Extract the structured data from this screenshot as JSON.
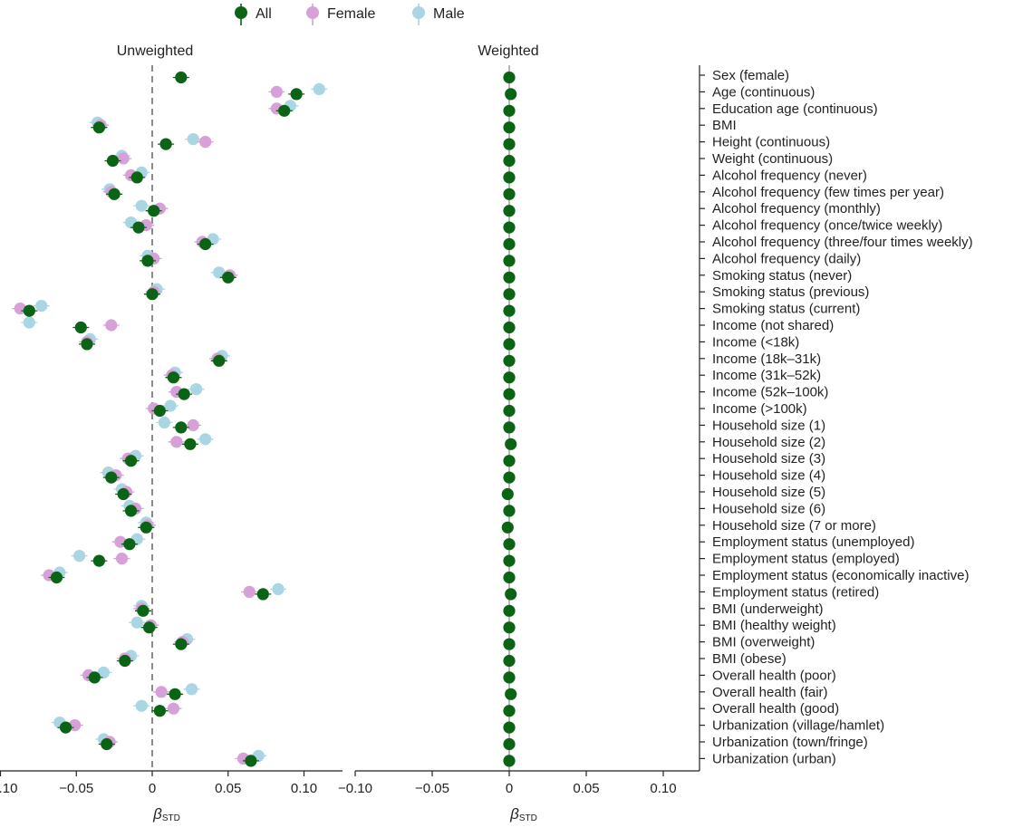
{
  "chart_data": {
    "type": "scatter",
    "legend": {
      "placement": "top-center",
      "entries": [
        {
          "name": "All",
          "color": "#0b6416"
        },
        {
          "name": "Female",
          "color": "#d7a0d8"
        },
        {
          "name": "Male",
          "color": "#a9d6e2"
        }
      ]
    },
    "xlabel": "β",
    "xlabel_sub": "STD",
    "xticks": [
      -0.1,
      -0.05,
      0,
      0.05,
      0.1
    ],
    "xtick_labels": [
      "−0.10",
      "−0.05",
      "0",
      "0.05",
      "0.10"
    ],
    "variables": [
      "Sex (female)",
      "Age (continuous)",
      "Education age (continuous)",
      "BMI",
      "Height (continuous)",
      "Weight (continuous)",
      "Alcohol frequency (never)",
      "Alcohol frequency (few times per year)",
      "Alcohol frequency (monthly)",
      "Alcohol frequency (once/twice weekly)",
      "Alcohol frequency (three/four times weekly)",
      "Alcohol frequency (daily)",
      "Smoking status (never)",
      "Smoking status (previous)",
      "Smoking status (current)",
      "Income (not shared)",
      "Income (<18k)",
      "Income (18k–31k)",
      "Income (31k–52k)",
      "Income (52k–100k)",
      "Income (>100k)",
      "Household size (1)",
      "Household size (2)",
      "Household size (3)",
      "Household size (4)",
      "Household size (5)",
      "Household size (6)",
      "Household size (7 or more)",
      "Employment status (unemployed)",
      "Employment status (employed)",
      "Employment status (economically inactive)",
      "Employment status (retired)",
      "BMI (underweight)",
      "BMI (healthy weight)",
      "BMI (overweight)",
      "BMI (obese)",
      "Overall health (poor)",
      "Overall health (fair)",
      "Overall health (good)",
      "Urbanization (village/hamlet)",
      "Urbanization (town/fringe)",
      "Urbanization (urban)"
    ],
    "panels": [
      {
        "title": "Unweighted",
        "xlim": [
          -0.1,
          0.127
        ],
        "series": [
          {
            "name": "Male",
            "values": [
              null,
              0.11,
              0.091,
              -0.036,
              0.027,
              -0.02,
              -0.007,
              -0.028,
              -0.007,
              -0.014,
              0.04,
              -0.003,
              0.044,
              0.003,
              -0.073,
              -0.081,
              -0.041,
              0.046,
              0.015,
              0.029,
              0.012,
              0.008,
              0.035,
              -0.011,
              -0.029,
              -0.02,
              -0.015,
              -0.004,
              -0.01,
              -0.048,
              -0.061,
              0.083,
              -0.007,
              -0.01,
              0.023,
              -0.014,
              -0.032,
              0.026,
              -0.007,
              -0.061,
              -0.032,
              0.07
            ]
          },
          {
            "name": "Female",
            "values": [
              null,
              0.082,
              0.082,
              -0.034,
              0.035,
              -0.019,
              -0.014,
              -0.027,
              0.005,
              -0.004,
              0.033,
              0.001,
              0.051,
              0.001,
              -0.087,
              -0.027,
              -0.043,
              0.043,
              0.013,
              0.016,
              0.001,
              0.027,
              0.016,
              -0.016,
              -0.024,
              -0.017,
              -0.011,
              -0.003,
              -0.021,
              -0.02,
              -0.068,
              0.064,
              -0.007,
              -0.001,
              0.02,
              -0.018,
              -0.042,
              0.006,
              0.014,
              -0.051,
              -0.028,
              0.06
            ]
          },
          {
            "name": "All",
            "values": [
              0.019,
              0.095,
              0.087,
              -0.035,
              0.009,
              -0.026,
              -0.01,
              -0.025,
              0.001,
              -0.009,
              0.035,
              -0.003,
              0.05,
              0.0,
              -0.081,
              -0.047,
              -0.043,
              0.044,
              0.014,
              0.021,
              0.005,
              0.019,
              0.025,
              -0.014,
              -0.027,
              -0.019,
              -0.014,
              -0.004,
              -0.015,
              -0.035,
              -0.063,
              0.073,
              -0.006,
              -0.002,
              0.019,
              -0.018,
              -0.038,
              0.015,
              0.005,
              -0.057,
              -0.03,
              0.065
            ]
          }
        ]
      },
      {
        "title": "Weighted",
        "xlim": [
          -0.1,
          0.127
        ],
        "series": [
          {
            "name": "All",
            "values": [
              0.0,
              0.001,
              0.0,
              0.0,
              0.0,
              0.0,
              0.0,
              0.0,
              0.0,
              0.0,
              0.0,
              0.0,
              0.0,
              0.0,
              0.0,
              0.0,
              0.0,
              0.0,
              0.0,
              0.0,
              0.0,
              0.0,
              0.001,
              0.0,
              0.0,
              -0.001,
              0.0,
              -0.001,
              0.0,
              0.0,
              0.0,
              0.001,
              0.0,
              0.0,
              0.0,
              0.0,
              0.0,
              0.001,
              0.0,
              0.0,
              0.0,
              0.0
            ]
          }
        ]
      }
    ]
  }
}
